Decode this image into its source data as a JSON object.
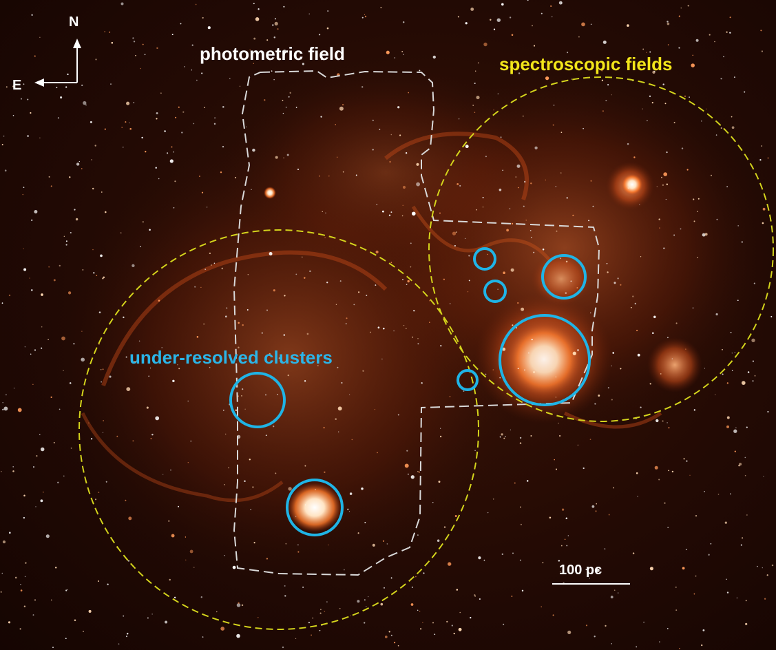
{
  "compass": {
    "north": "N",
    "east": "E"
  },
  "labels": {
    "photometric": "photometric field",
    "spectroscopic": "spectroscopic fields",
    "clusters": "under-resolved clusters"
  },
  "scalebar": {
    "text": "100 pc"
  },
  "colors": {
    "photometric_outline": "#d9d9d9",
    "spectroscopic_outline": "#d4d41c",
    "cluster_circle": "#1fb4e6",
    "photometric_label": "#ffffff",
    "spectroscopic_label": "#f2e51a",
    "clusters_label": "#2bb5e8"
  }
}
